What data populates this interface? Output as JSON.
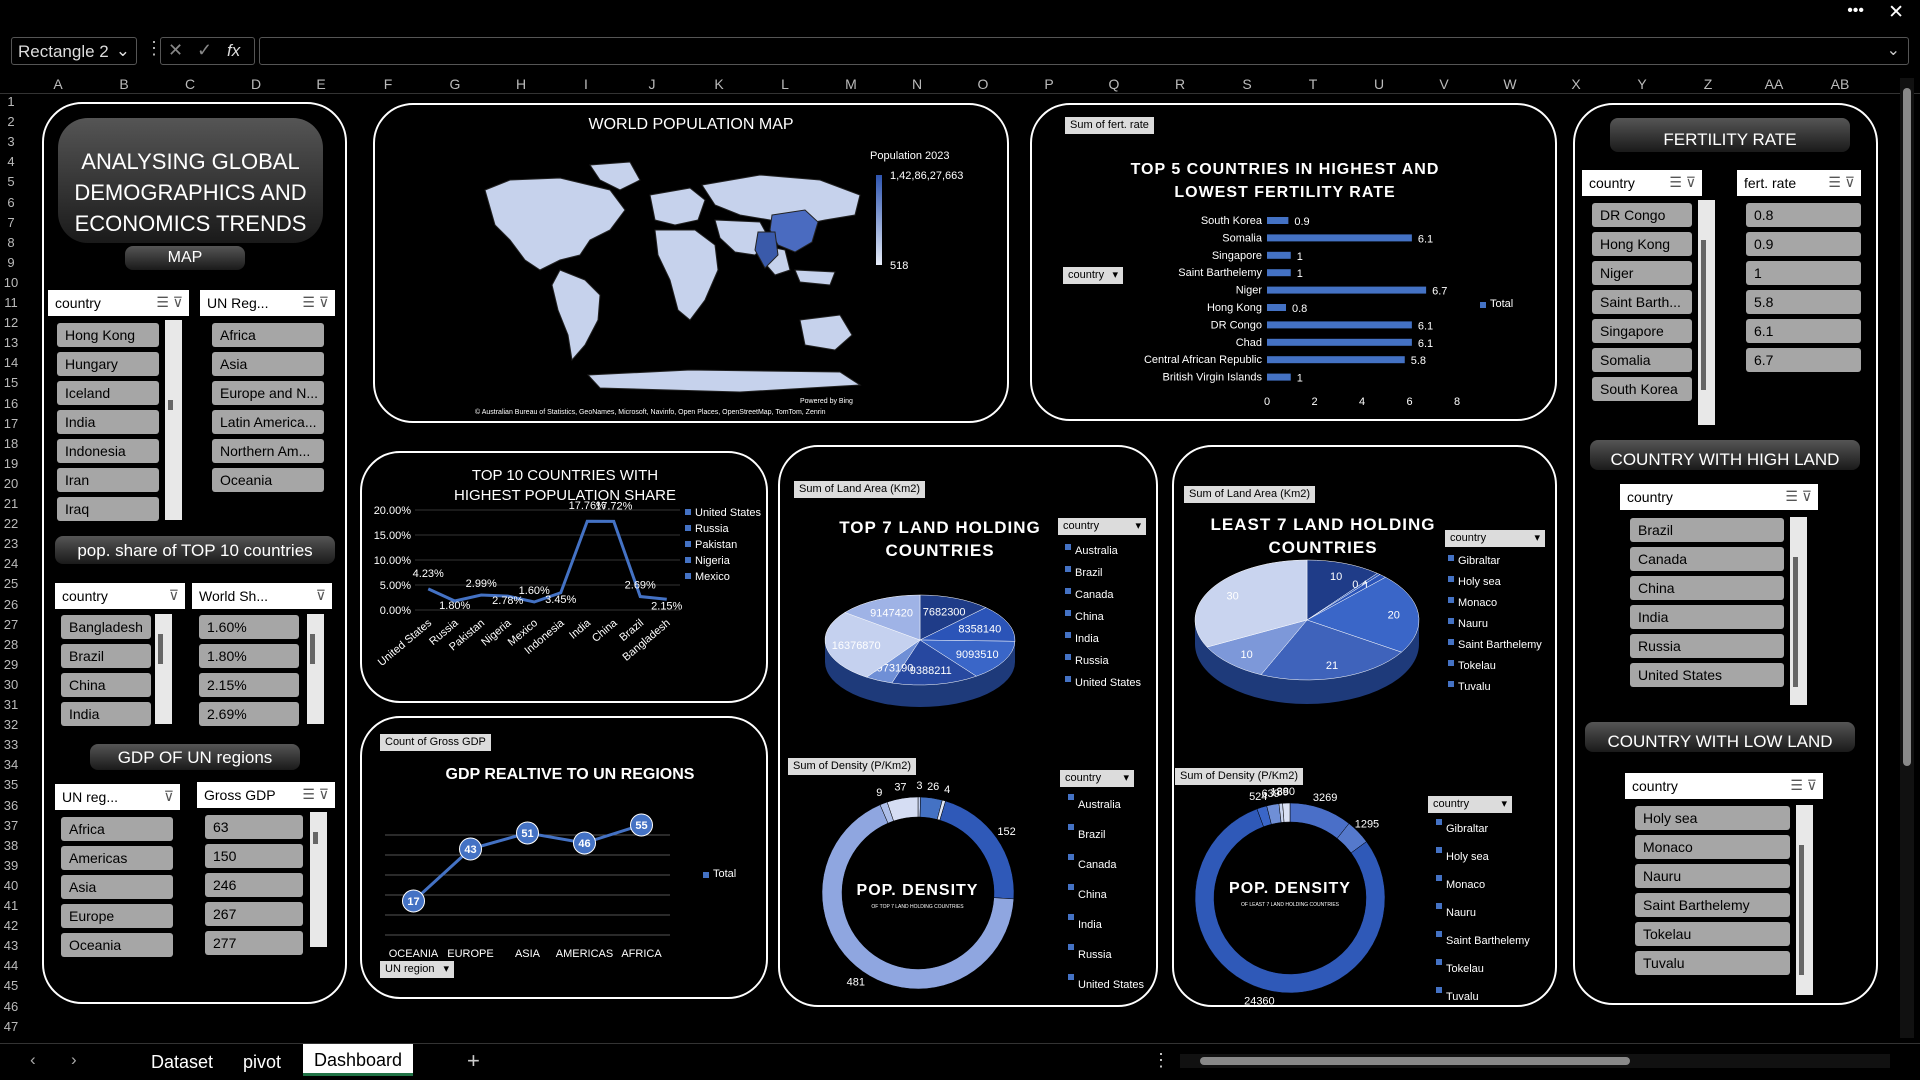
{
  "window": {
    "more": "•••",
    "close": "✕"
  },
  "formula_bar": {
    "name_box": "Rectangle 2",
    "fx": "fx",
    "value": ""
  },
  "columns": [
    "A",
    "B",
    "C",
    "D",
    "E",
    "F",
    "G",
    "H",
    "I",
    "J",
    "K",
    "L",
    "M",
    "N",
    "O",
    "P",
    "Q",
    "R",
    "S",
    "T",
    "U",
    "V",
    "W",
    "X",
    "Y",
    "Z",
    "AA",
    "AB"
  ],
  "rows": [
    "1",
    "2",
    "3",
    "4",
    "5",
    "6",
    "7",
    "8",
    "9",
    "10",
    "11",
    "12",
    "13",
    "14",
    "15",
    "16",
    "17",
    "18",
    "19",
    "20",
    "21",
    "22",
    "23",
    "24",
    "25",
    "26",
    "27",
    "28",
    "29",
    "30",
    "31",
    "32",
    "33",
    "34",
    "35",
    "36",
    "37",
    "38",
    "39",
    "40",
    "41",
    "42",
    "43",
    "44",
    "45",
    "46",
    "47"
  ],
  "left": {
    "title": "ANALYSING GLOBAL DEMOGRAPHICS AND ECONOMICS TRENDS",
    "map_label": "MAP",
    "country_slicer": {
      "header": "country",
      "items": [
        "Hong Kong",
        "Hungary",
        "Iceland",
        "India",
        "Indonesia",
        "Iran",
        "Iraq"
      ]
    },
    "region_slicer": {
      "header": "UN Reg...",
      "items": [
        "Africa",
        "Asia",
        "Europe and N...",
        "Latin America...",
        "Northern Am...",
        "Oceania"
      ]
    },
    "pop_label": "pop. share of TOP 10 countries",
    "pop_country_slicer": {
      "header": "country",
      "items": [
        "Bangladesh",
        "Brazil",
        "China",
        "India"
      ]
    },
    "world_share_slicer": {
      "header": "World Sh...",
      "items": [
        "1.60%",
        "1.80%",
        "2.15%",
        "2.69%"
      ]
    },
    "gdp_label": "GDP OF UN regions",
    "gdp_region_slicer": {
      "header": "UN reg...",
      "items": [
        "Africa",
        "Americas",
        "Asia",
        "Europe",
        "Oceania"
      ]
    },
    "gdp_slicer": {
      "header": "Gross GDP",
      "items": [
        "63",
        "150",
        "246",
        "267",
        "277"
      ]
    }
  },
  "map": {
    "title": "WORLD POPULATION MAP",
    "legend_title": "Population  2023",
    "max": "1,42,86,27,663",
    "min": "518",
    "powered": "Powered by Bing",
    "credits": "© Australian Bureau of Statistics, GeoNames, Microsoft, Navinfo, Open Places, OpenStreetMap, TomTom, Zenrin"
  },
  "fertility_chart": {
    "field": "Sum of fert. rate",
    "title": "TOP 5 COUNTRIES IN HIGHEST AND LOWEST FERTILITY RATE",
    "filter": "country",
    "legend": "Total"
  },
  "pop_share_chart": {
    "title": "TOP 10 COUNTRIES WITH HIGHEST POPULATION SHARE",
    "legend": [
      "United States",
      "Russia",
      "Pakistan",
      "Nigeria",
      "Mexico"
    ]
  },
  "gdp_chart": {
    "field": "Count of Gross GDP",
    "title": "GDP REALTIVE TO UN REGIONS",
    "legend": "Total",
    "filter": "UN region"
  },
  "top7": {
    "field": "Sum of Land Area (Km2)",
    "title": "TOP 7 LAND HOLDING COUNTRIES",
    "filter": "country",
    "legend": [
      "Australia",
      "Brazil",
      "Canada",
      "China",
      "India",
      "Russia",
      "United States"
    ],
    "density_field": "Sum of Density  (P/Km2)",
    "density_title": "POP. DENSITY",
    "density_sub": "OF TOP 7 LAND HOLDING COUNTRIES",
    "density_filter": "country",
    "density_legend": [
      "Australia",
      "Brazil",
      "Canada",
      "China",
      "India",
      "Russia",
      "United States"
    ]
  },
  "least7": {
    "field": "Sum of Land Area (Km2)",
    "title": "LEAST 7 LAND HOLDING COUNTRIES",
    "filter": "country",
    "legend": [
      "Gibraltar",
      "Holy sea",
      "Monaco",
      "Nauru",
      "Saint Barthelemy",
      "Tokelau",
      "Tuvalu"
    ],
    "density_field": "Sum of Density  (P/Km2)",
    "density_title": "POP. DENSITY",
    "density_sub": "OF LEAST 7 LAND HOLDING COUNTRIES",
    "density_filter": "country",
    "density_legend": [
      "Gibraltar",
      "Holy sea",
      "Monaco",
      "Nauru",
      "Saint Barthelemy",
      "Tokelau",
      "Tuvalu"
    ]
  },
  "right": {
    "fert_title": "FERTILITY RATE",
    "fert_country_slicer": {
      "header": "country",
      "items": [
        "DR Congo",
        "Hong Kong",
        "Niger",
        "Saint Barth...",
        "Singapore",
        "Somalia",
        "South Korea"
      ]
    },
    "fert_rate_slicer": {
      "header": "fert. rate",
      "items": [
        "0.8",
        "0.9",
        "1",
        "5.8",
        "6.1",
        "6.7"
      ]
    },
    "high_title": "COUNTRY WITH HIGH LAND",
    "high_slicer": {
      "header": "country",
      "items": [
        "Brazil",
        "Canada",
        "China",
        "India",
        "Russia",
        "United States"
      ]
    },
    "low_title": "COUNTRY WITH LOW LAND",
    "low_slicer": {
      "header": "country",
      "items": [
        "Holy sea",
        "Monaco",
        "Nauru",
        "Saint Barthelemy",
        "Tokelau",
        "Tuvalu"
      ]
    }
  },
  "tabs": [
    "Dataset",
    "pivot",
    "Dashboard"
  ],
  "active_tab": "Dashboard",
  "chart_data": [
    {
      "type": "bar",
      "orientation": "horizontal",
      "title": "TOP 5 COUNTRIES IN HIGHEST AND LOWEST FERTILITY RATE",
      "categories": [
        "South Korea",
        "Somalia",
        "Singapore",
        "Saint Barthelemy",
        "Niger",
        "Hong Kong",
        "DR Congo",
        "Chad",
        "Central African Republic",
        "British Virgin Islands"
      ],
      "values": [
        0.9,
        6.1,
        1,
        1,
        6.7,
        0.8,
        6.1,
        6.1,
        5.8,
        1
      ],
      "xlim": [
        0,
        8
      ],
      "xticks": [
        "0",
        "2",
        "4",
        "6",
        "8"
      ],
      "legend": "Total"
    },
    {
      "type": "line",
      "title": "TOP 10 COUNTRIES WITH HIGHEST POPULATION SHARE",
      "categories": [
        "United States",
        "Russia",
        "Pakistan",
        "Nigeria",
        "Mexico",
        "Indonesia",
        "India",
        "China",
        "Brazil",
        "Bangladesh"
      ],
      "values": [
        4.23,
        1.8,
        2.99,
        2.78,
        1.6,
        3.45,
        17.76,
        17.72,
        2.69,
        2.15
      ],
      "labels": [
        "4.23%",
        "1.80%",
        "2.99%",
        "2.78%",
        "1.60%",
        "3.45%",
        "17.76%",
        "17.72%",
        "2.69%",
        "2.15%"
      ],
      "ylim": [
        0,
        20
      ],
      "yticks": [
        "0.00%",
        "5.00%",
        "10.00%",
        "15.00%",
        "20.00%"
      ]
    },
    {
      "type": "line",
      "title": "GDP REALTIVE TO UN REGIONS",
      "categories": [
        "OCEANIA",
        "EUROPE",
        "ASIA",
        "AMERICAS",
        "AFRICA"
      ],
      "values": [
        17,
        43,
        51,
        46,
        55
      ],
      "legend": "Total"
    },
    {
      "type": "pie",
      "title": "TOP 7 LAND HOLDING COUNTRIES",
      "categories": [
        "Australia",
        "Brazil",
        "Canada",
        "China",
        "India",
        "Russia",
        "United States"
      ],
      "values": [
        7682300,
        8358140,
        9093510,
        9388211,
        2973190,
        16376870,
        9147420
      ]
    },
    {
      "type": "pie",
      "title": "POP. DENSITY",
      "categories": [
        "Australia",
        "Brazil",
        "Canada",
        "China",
        "India",
        "Russia",
        "United States"
      ],
      "values": [
        3,
        26,
        4,
        152,
        481,
        9,
        37
      ]
    },
    {
      "type": "pie",
      "title": "LEAST 7 LAND HOLDING COUNTRIES",
      "categories": [
        "Gibraltar",
        "Holy sea",
        "Monaco",
        "Nauru",
        "Saint Barthelemy",
        "Tokelau",
        "Tuvalu"
      ],
      "values": [
        10,
        0.44,
        1,
        20,
        21,
        10,
        30
      ]
    },
    {
      "type": "pie",
      "title": "POP. DENSITY",
      "categories": [
        "Gibraltar",
        "Holy sea",
        "Monaco",
        "Nauru",
        "Saint Barthelemy",
        "Tokelau",
        "Tuvalu"
      ],
      "values": [
        3269,
        1295,
        24360,
        524,
        639,
        189,
        380
      ]
    }
  ]
}
